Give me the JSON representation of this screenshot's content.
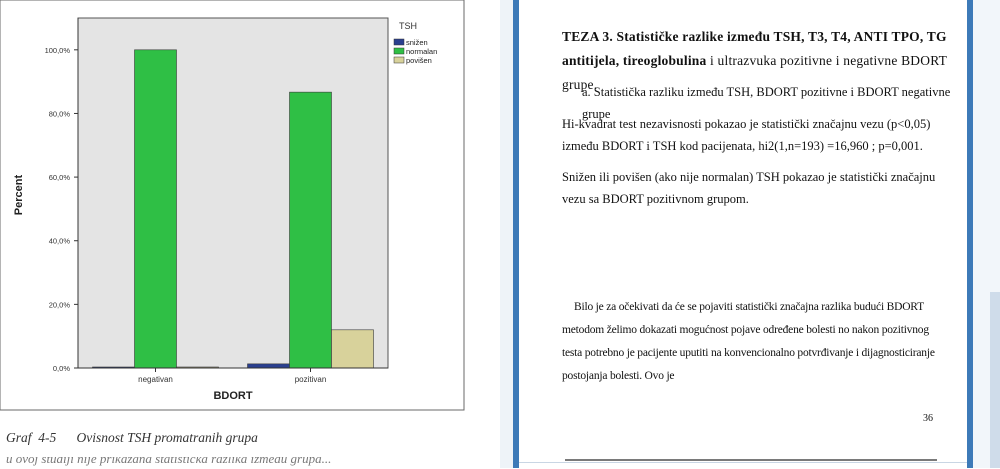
{
  "chart_data": {
    "type": "bar",
    "categories": [
      "negativan",
      "pozitivan"
    ],
    "series": [
      {
        "name": "snižen",
        "values": [
          0.0,
          1.3
        ],
        "color": "#2a3f8f"
      },
      {
        "name": "normalan",
        "values": [
          100.0,
          86.7
        ],
        "color": "#2fbf45"
      },
      {
        "name": "povišen",
        "values": [
          0.0,
          12.0
        ],
        "color": "#d8d29b"
      }
    ],
    "title": "",
    "xlabel": "BDORT",
    "ylabel": "Percent",
    "ylim": [
      0,
      110
    ],
    "yticks": [
      "0,0%",
      "20,0%",
      "40,0%",
      "60,0%",
      "80,0%",
      "100,0%"
    ],
    "ytick_values": [
      0,
      20,
      40,
      60,
      80,
      100
    ],
    "legend_title": "TSH",
    "legend_placement": "top-right, outside plot",
    "plot_background": "#e4e4e4",
    "grid": false
  },
  "caption": {
    "label": "Graf  4-5",
    "text": "Ovisnost TSH promatranih grupa"
  },
  "cut_text": "u ovoj studiji nije prikazana statistička razlika između grupa...",
  "document": {
    "thesis_bold": "TEZA 3. Statističke razlike između TSH, T3, T4, ANTI TPO, TG antitijela, tireoglobulina",
    "thesis_rest": " i ultrazvuka pozitivne i negativne BDORT grupe.",
    "item_a": "a.   Statistička razliku između TSH,  BDORT pozitivne i BDORT negativne grupe",
    "para1": "Hi-kvadrat test nezavisnosti pokazao je statistički značajnu vezu (p<0,05) između BDORT i TSH kod pacijenata, hi2(1,n=193) =16,960 ; p=0,001.",
    "para2": "Snižen ili povišen (ako nije normalan) TSH pokazao je statistički značajnu vezu sa BDORT pozitivnom grupom.",
    "para3": "Bilo je za očekivati da će se pojaviti statistički značajna razlika budući BDORT metodom želimo dokazati mogućnost pojave određene bolesti no nakon pozitivnog testa potrebno je pacijente uputiti na konvencionalno potvrđivanje i dijagnosticiranje postojanja bolesti. Ovo je",
    "page_number": "36"
  }
}
